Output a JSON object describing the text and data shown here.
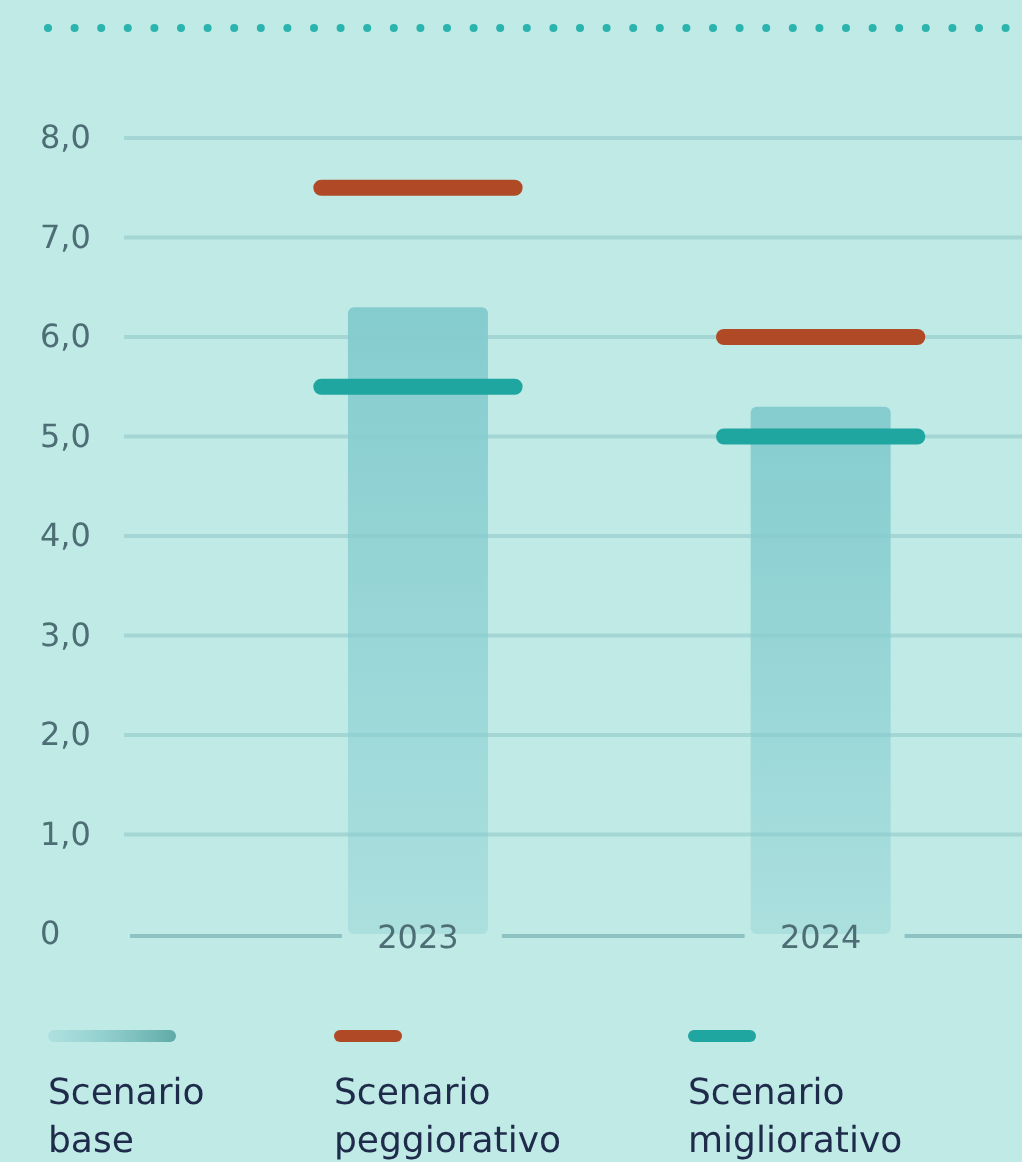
{
  "chart_data": {
    "type": "bar",
    "x": [
      2023,
      2024
    ],
    "xlim": [
      2022.27,
      2024.5
    ],
    "xticks": [
      2023,
      2024
    ],
    "ylim": [
      0,
      8
    ],
    "yticks": [
      {
        "value": 0,
        "label": "0"
      },
      {
        "value": 1,
        "label": "1,0"
      },
      {
        "value": 2,
        "label": "2,0"
      },
      {
        "value": 3,
        "label": "3,0"
      },
      {
        "value": 4,
        "label": "4,0"
      },
      {
        "value": 5,
        "label": "5,0"
      },
      {
        "value": 6,
        "label": "6,0"
      },
      {
        "value": 7,
        "label": "7,0"
      },
      {
        "value": 8,
        "label": "8,0"
      }
    ],
    "grid": "y",
    "legend": "bottom",
    "series": [
      {
        "name": "Scenario base",
        "type": "bar",
        "color": "#85cccf",
        "values": [
          6.3,
          5.3
        ]
      },
      {
        "name": "Scenario peggiorativo",
        "type": "line",
        "color": "#b04a26",
        "x": [
          2022.76,
          2023.24
        ],
        "values": [
          7.5,
          7.5
        ]
      },
      {
        "name": "Scenario migliorativo",
        "type": "line",
        "color": "#20a6a0",
        "x": [
          2022.76,
          2023.24
        ],
        "values": [
          5.5,
          5.5
        ]
      },
      {
        "type": "line",
        "color": "#b04a26",
        "x": [
          2023.76,
          2024.24
        ],
        "values": [
          6.0,
          6.0
        ]
      },
      {
        "type": "line",
        "color": "#20a6a0",
        "x": [
          2023.76,
          2024.24
        ],
        "values": [
          5.0,
          5.0
        ]
      }
    ]
  }
}
